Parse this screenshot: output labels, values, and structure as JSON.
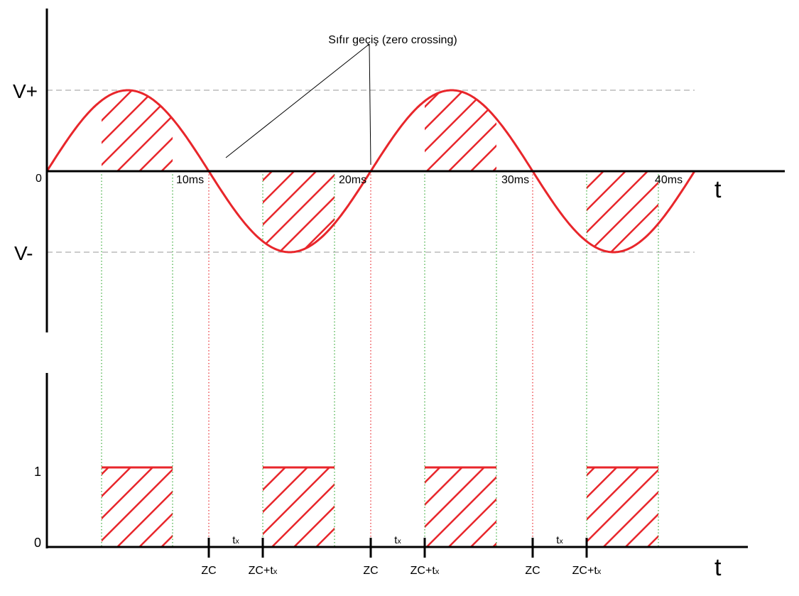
{
  "top_axis": {
    "y_labels": [
      "V+",
      "0",
      "V-"
    ],
    "time_labels": [
      "10ms",
      "20ms",
      "30ms",
      "40ms"
    ],
    "axis_label": "t"
  },
  "annotation": "Sıfır geçiş (zero crossing)",
  "bottom_axis": {
    "y_labels": [
      "1",
      "0"
    ],
    "axis_label": "t",
    "markers": [
      {
        "main": "ZC"
      },
      {
        "main": "ZC+t",
        "sub": "x"
      },
      {
        "main": "ZC"
      },
      {
        "main": "ZC+t",
        "sub": "x"
      },
      {
        "main": "ZC"
      },
      {
        "main": "ZC+t",
        "sub": "x"
      }
    ],
    "interval_labels": [
      {
        "main": "t",
        "sub": "x"
      },
      {
        "main": "t",
        "sub": "x"
      },
      {
        "main": "t",
        "sub": "x"
      }
    ]
  }
}
